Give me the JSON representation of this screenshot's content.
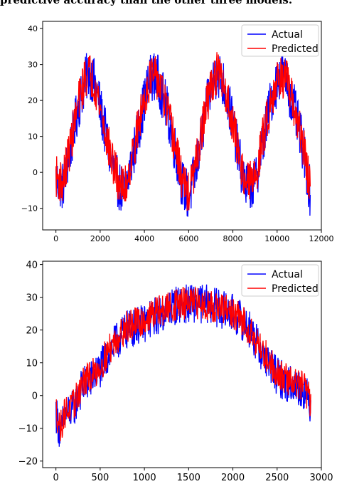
{
  "caption": "predictive accuracy than the other three models.",
  "chart_data": [
    {
      "type": "line",
      "xlim": [
        -600,
        12000
      ],
      "ylim": [
        -16,
        42
      ],
      "xticks": [
        0,
        2000,
        4000,
        6000,
        8000,
        10000,
        12000
      ],
      "xtick_labels": [
        "0",
        "2000",
        "4000",
        "6000",
        "8000",
        "10000",
        "12000"
      ],
      "yticks": [
        -10,
        0,
        10,
        20,
        30,
        40
      ],
      "ytick_labels": [
        "−10",
        "0",
        "10",
        "20",
        "30",
        "40"
      ],
      "legend": {
        "position": "top-right"
      },
      "grid": false,
      "series": [
        {
          "name": "Actual",
          "color": "#0000ff",
          "x": [
            0,
            300,
            700,
            1000,
            1300,
            1500,
            1800,
            2200,
            2500,
            2800,
            3100,
            3500,
            4000,
            4300,
            4600,
            5000,
            5400,
            5700,
            6000,
            6300,
            6700,
            7000,
            7300,
            7600,
            8000,
            8300,
            8600,
            9000,
            9400,
            9800,
            10100,
            10400,
            10800,
            11200,
            11500
          ],
          "y": [
            -2,
            -4,
            8,
            18,
            25,
            28,
            24,
            12,
            3,
            -3,
            -6,
            5,
            20,
            27,
            26,
            18,
            6,
            -3,
            -7,
            0,
            14,
            24,
            28,
            24,
            14,
            3,
            -4,
            -3,
            10,
            22,
            27,
            26,
            17,
            6,
            -6
          ],
          "spread": 7
        },
        {
          "name": "Predicted",
          "color": "#ff0000",
          "x": [
            0,
            300,
            700,
            1000,
            1300,
            1500,
            1800,
            2200,
            2500,
            2800,
            3100,
            3500,
            4000,
            4300,
            4600,
            5000,
            5400,
            5700,
            6000,
            6300,
            6700,
            7000,
            7300,
            7600,
            8000,
            8300,
            8600,
            9000,
            9400,
            9800,
            10100,
            10400,
            10800,
            11200,
            11500
          ],
          "y": [
            -1,
            -3,
            9,
            19,
            26,
            28,
            24,
            12,
            4,
            -2,
            -5,
            6,
            21,
            27,
            26,
            18,
            7,
            -2,
            -6,
            1,
            15,
            24,
            28,
            24,
            14,
            4,
            -3,
            -2,
            11,
            22,
            27,
            26,
            17,
            7,
            -5
          ],
          "spread": 6
        }
      ]
    },
    {
      "type": "line",
      "xlim": [
        -150,
        3000
      ],
      "ylim": [
        -22,
        41
      ],
      "xticks": [
        0,
        500,
        1000,
        1500,
        2000,
        2500,
        3000
      ],
      "xtick_labels": [
        "0",
        "500",
        "1000",
        "1500",
        "2000",
        "2500",
        "3000"
      ],
      "yticks": [
        -20,
        -10,
        0,
        10,
        20,
        30,
        40
      ],
      "ytick_labels": [
        "−20",
        "−10",
        "0",
        "10",
        "20",
        "30",
        "40"
      ],
      "legend": {
        "position": "top-right"
      },
      "grid": false,
      "series": [
        {
          "name": "Actual",
          "color": "#0000ff",
          "x": [
            0,
            50,
            100,
            200,
            300,
            400,
            500,
            600,
            700,
            800,
            900,
            1000,
            1100,
            1200,
            1300,
            1400,
            1500,
            1600,
            1700,
            1800,
            1900,
            2000,
            2100,
            2200,
            2300,
            2400,
            2500,
            2600,
            2700,
            2800,
            2880
          ],
          "y": [
            -5,
            -12,
            -6,
            -4,
            3,
            5,
            8,
            13,
            17,
            20,
            21,
            22,
            24,
            25,
            27,
            28,
            28,
            28,
            28,
            27,
            26,
            25,
            23,
            20,
            14,
            10,
            6,
            4,
            3,
            2,
            -3
          ],
          "spread": 6
        },
        {
          "name": "Predicted",
          "color": "#ff0000",
          "x": [
            0,
            50,
            100,
            200,
            300,
            400,
            500,
            600,
            700,
            800,
            900,
            1000,
            1100,
            1200,
            1300,
            1400,
            1500,
            1600,
            1700,
            1800,
            1900,
            2000,
            2100,
            2200,
            2300,
            2400,
            2500,
            2600,
            2700,
            2800,
            2880
          ],
          "y": [
            -4,
            -10,
            -5,
            -3,
            4,
            6,
            9,
            14,
            18,
            21,
            22,
            23,
            25,
            26,
            27,
            28,
            28,
            28,
            28,
            27,
            26,
            25,
            23,
            20,
            15,
            11,
            7,
            5,
            4,
            3,
            -2
          ],
          "spread": 5
        }
      ]
    }
  ]
}
